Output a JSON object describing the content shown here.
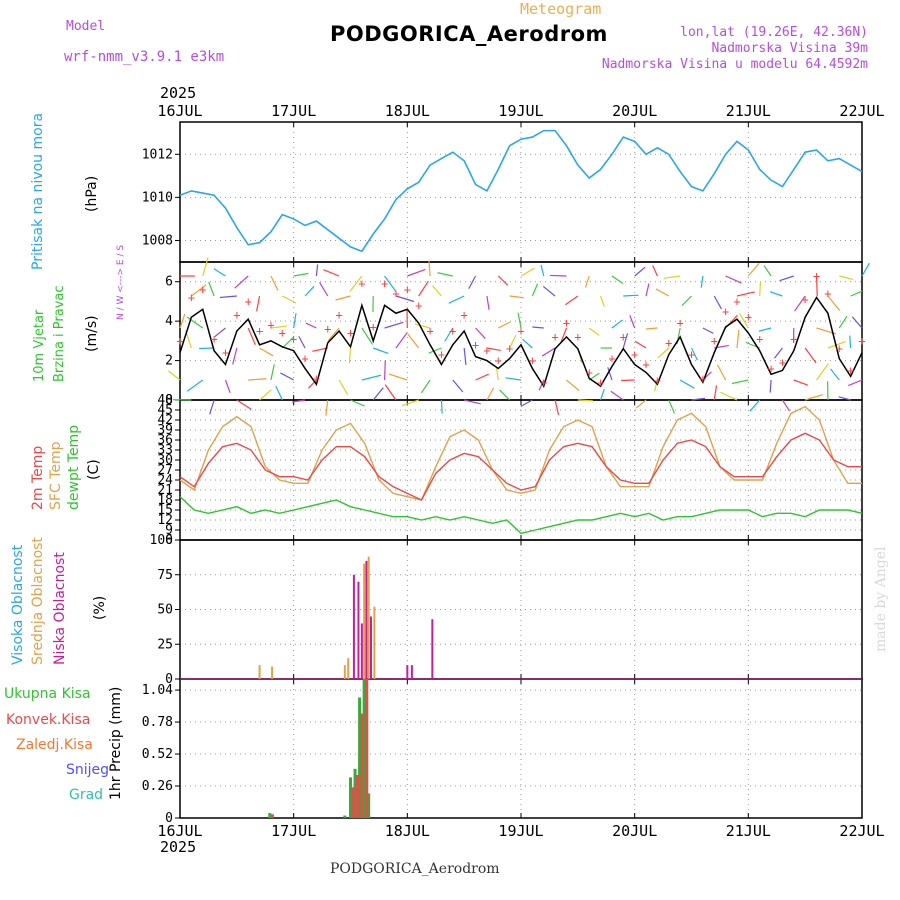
{
  "header": {
    "model_label": "Model",
    "model_name": "wrf-nmm_v3.9.1 e3km",
    "meteogram_label": "Meteogram",
    "station": "PODGORICA_Aerodrom",
    "lonlat": "lon,lat (19.26E, 42.36N)",
    "elevation": "Nadmorska Visina 39m",
    "model_elevation": "Nadmorska Visina u modelu 64.4592m",
    "year_top": "2025",
    "year_bottom": "2025",
    "footer_station": "PODGORICA_Aerodrom",
    "watermark": "made by Angel"
  },
  "colors": {
    "pressure": "#2aa7e6",
    "temp2m": "#e84a4a",
    "sfc": "#e0a24a",
    "dewpt": "#2fc42f",
    "wind_speed": "#000000",
    "gust": "#ff4040",
    "high_cloud": "#2aa7e6",
    "mid_cloud": "#e0a24a",
    "low_cloud": "#c0209a",
    "total_precip": "#3aa83a",
    "conv_precip": "#e84a4a",
    "frz_precip": "#f07830",
    "snow": "#5050ff",
    "graupel": "#30c0b0",
    "watermark": "#d8d8d8"
  },
  "chart_data": [
    {
      "type": "line",
      "title": "Pritisak na nivou mora",
      "ylabel": "(hPa)",
      "ylim": [
        1007,
        1013.5
      ],
      "yticks": [
        1008,
        1010,
        1012
      ],
      "xticks": [
        "16JUL",
        "17JUL",
        "18JUL",
        "19JUL",
        "20JUL",
        "21JUL",
        "22JUL"
      ],
      "x": [
        0,
        0.1,
        0.2,
        0.3,
        0.4,
        0.5,
        0.6,
        0.7,
        0.8,
        0.9,
        1.0,
        1.1,
        1.2,
        1.3,
        1.4,
        1.5,
        1.6,
        1.7,
        1.8,
        1.9,
        2.0,
        2.1,
        2.2,
        2.3,
        2.4,
        2.5,
        2.6,
        2.7,
        2.8,
        2.9,
        3.0,
        3.1,
        3.2,
        3.3,
        3.4,
        3.5,
        3.6,
        3.7,
        3.8,
        3.9,
        4.0,
        4.1,
        4.2,
        4.3,
        4.4,
        4.5,
        4.6,
        4.7,
        4.8,
        4.9,
        5.0,
        5.1,
        5.2,
        5.3,
        5.4,
        5.5,
        5.6,
        5.7,
        5.8,
        5.9,
        6.0
      ],
      "series": [
        {
          "name": "Pritisak",
          "values": [
            1010.1,
            1010.3,
            1010.2,
            1010.1,
            1009.5,
            1008.6,
            1007.8,
            1007.9,
            1008.4,
            1009.2,
            1009.0,
            1008.7,
            1008.9,
            1008.5,
            1008.1,
            1007.7,
            1007.5,
            1008.3,
            1009.0,
            1009.9,
            1010.4,
            1010.7,
            1011.5,
            1011.8,
            1012.1,
            1011.7,
            1010.6,
            1010.3,
            1011.3,
            1012.4,
            1012.7,
            1012.8,
            1013.1,
            1013.1,
            1012.4,
            1011.5,
            1010.9,
            1011.3,
            1012.0,
            1012.8,
            1012.6,
            1012.0,
            1012.3,
            1012.0,
            1011.2,
            1010.5,
            1010.3,
            1011.1,
            1012.0,
            1012.6,
            1012.2,
            1011.3,
            1010.8,
            1010.5,
            1011.3,
            1012.1,
            1012.2,
            1011.7,
            1011.8,
            1011.5,
            1011.2
          ]
        }
      ]
    },
    {
      "type": "line",
      "title": "10m Vjetar Brzina i Pravac",
      "ylabel": "(m/s)",
      "compass": "N / W <---> E / S",
      "ylim": [
        0,
        7
      ],
      "yticks": [
        0,
        2,
        4,
        6
      ],
      "x": [
        0,
        0.1,
        0.2,
        0.3,
        0.4,
        0.5,
        0.6,
        0.7,
        0.8,
        0.9,
        1.0,
        1.1,
        1.2,
        1.3,
        1.4,
        1.5,
        1.6,
        1.7,
        1.8,
        1.9,
        2.0,
        2.1,
        2.2,
        2.3,
        2.4,
        2.5,
        2.6,
        2.7,
        2.8,
        2.9,
        3.0,
        3.1,
        3.2,
        3.3,
        3.4,
        3.5,
        3.6,
        3.7,
        3.8,
        3.9,
        4.0,
        4.1,
        4.2,
        4.3,
        4.4,
        4.5,
        4.6,
        4.7,
        4.8,
        4.9,
        5.0,
        5.1,
        5.2,
        5.3,
        5.4,
        5.5,
        5.6,
        5.7,
        5.8,
        5.9,
        6.0
      ],
      "series": [
        {
          "name": "Brzina",
          "values": [
            2.4,
            4.2,
            4.6,
            2.5,
            1.8,
            3.5,
            4.1,
            2.8,
            3.0,
            2.7,
            2.5,
            1.6,
            0.8,
            2.9,
            3.5,
            2.7,
            4.8,
            3.0,
            4.8,
            4.4,
            4.6,
            3.9,
            2.8,
            1.8,
            2.8,
            3.5,
            2.2,
            2.0,
            1.6,
            2.1,
            2.8,
            1.6,
            0.7,
            2.6,
            3.2,
            2.6,
            1.1,
            0.7,
            1.7,
            2.6,
            1.8,
            1.4,
            0.8,
            2.3,
            3.2,
            1.8,
            0.9,
            2.4,
            3.7,
            4.1,
            3.4,
            2.5,
            1.3,
            1.5,
            2.5,
            4.2,
            5.2,
            4.4,
            2.1,
            1.2,
            2.4
          ]
        },
        {
          "name": "Udari",
          "values": [
            3.0,
            5.2,
            5.6,
            3.1,
            2.4,
            4.3,
            5.0,
            3.5,
            3.8,
            3.4,
            3.1,
            2.1,
            1.1,
            3.6,
            4.3,
            3.4,
            5.9,
            3.7,
            5.9,
            5.4,
            5.6,
            4.8,
            3.5,
            2.3,
            3.5,
            4.3,
            2.8,
            2.5,
            2.0,
            2.6,
            3.5,
            2.0,
            0.9,
            3.2,
            3.9,
            3.2,
            1.4,
            0.9,
            2.1,
            3.2,
            2.3,
            1.8,
            1.0,
            2.9,
            3.9,
            2.3,
            1.1,
            3.0,
            4.5,
            5.0,
            4.2,
            3.1,
            1.6,
            1.9,
            3.1,
            5.1,
            6.3,
            5.4,
            2.6,
            1.5,
            3.0
          ]
        }
      ]
    },
    {
      "type": "line",
      "title": "2m Temp / SFC Temp / dewpt Temp",
      "ylabel": "(C)",
      "ylim": [
        6,
        48
      ],
      "yticks": [
        6,
        9,
        12,
        15,
        18,
        21,
        24,
        27,
        30,
        33,
        36,
        39,
        42,
        45,
        48
      ],
      "x": [
        0,
        0.125,
        0.25,
        0.375,
        0.5,
        0.625,
        0.75,
        0.875,
        1.0,
        1.125,
        1.25,
        1.375,
        1.5,
        1.625,
        1.75,
        1.875,
        2.0,
        2.125,
        2.25,
        2.375,
        2.5,
        2.625,
        2.75,
        2.875,
        3.0,
        3.125,
        3.25,
        3.375,
        3.5,
        3.625,
        3.75,
        3.875,
        4.0,
        4.125,
        4.25,
        4.375,
        4.5,
        4.625,
        4.75,
        4.875,
        5.0,
        5.125,
        5.25,
        5.375,
        5.5,
        5.625,
        5.75,
        5.875,
        6.0
      ],
      "series": [
        {
          "name": "2m Temp",
          "values": [
            25,
            22,
            29,
            34,
            35,
            33,
            27,
            25,
            25,
            24,
            30,
            34,
            34,
            31,
            25,
            22,
            20,
            18,
            26,
            30,
            32,
            31,
            27,
            23,
            21,
            22,
            30,
            34,
            35,
            34,
            28,
            24,
            23,
            23,
            30,
            35,
            36,
            34,
            28,
            25,
            25,
            25,
            31,
            36,
            38,
            36,
            30,
            28,
            28
          ]
        },
        {
          "name": "SFC Temp",
          "values": [
            24,
            21,
            33,
            40,
            43,
            40,
            28,
            24,
            23,
            23,
            33,
            39,
            41,
            35,
            24,
            20,
            19,
            18,
            28,
            37,
            39,
            36,
            27,
            21,
            20,
            21,
            33,
            40,
            42,
            40,
            28,
            22,
            22,
            22,
            34,
            42,
            44,
            40,
            28,
            24,
            24,
            24,
            35,
            44,
            46,
            42,
            30,
            23,
            23
          ]
        },
        {
          "name": "dewpt Temp",
          "values": [
            19,
            15,
            14,
            15,
            16,
            14,
            15,
            14,
            15,
            16,
            17,
            18,
            16,
            15,
            14,
            13,
            13,
            12,
            13,
            12,
            13,
            12,
            11,
            12,
            8,
            9,
            10,
            11,
            12,
            12,
            13,
            14,
            13,
            14,
            12,
            13,
            13,
            14,
            15,
            15,
            15,
            13,
            14,
            14,
            13,
            15,
            15,
            15,
            14
          ]
        }
      ]
    },
    {
      "type": "bar",
      "title": "Visoka / Srednja / Niska Oblacnost",
      "ylabel": "(%)",
      "ylim": [
        0,
        100
      ],
      "yticks": [
        0,
        25,
        50,
        75,
        100
      ],
      "series": [
        {
          "name": "Visoka Oblacnost",
          "x": [],
          "values": []
        },
        {
          "name": "Srednja Oblacnost",
          "x": [
            0.7,
            0.76,
            0.81,
            1.45,
            1.48,
            1.62,
            1.66,
            1.71
          ],
          "values": [
            10,
            8,
            9,
            10,
            15,
            83,
            88,
            52
          ]
        },
        {
          "name": "Niska Oblacnost",
          "x": [
            1.5,
            1.53,
            1.57,
            1.6,
            1.64,
            1.68,
            2.0,
            2.04,
            2.22
          ],
          "values": [
            5,
            75,
            70,
            40,
            85,
            45,
            10,
            10,
            43
          ]
        }
      ]
    },
    {
      "type": "bar",
      "title": "1hr Precip",
      "ylabel": "1hr Precip (mm)",
      "ylim": [
        0,
        1.13
      ],
      "yticks": [
        0,
        0.26,
        0.52,
        0.78,
        1.04
      ],
      "xticks": [
        "16JUL",
        "17JUL",
        "18JUL",
        "19JUL",
        "20JUL",
        "21JUL",
        "22JUL"
      ],
      "legend": [
        "Ukupna Kisa",
        "Konvek.Kisa",
        "Zaledj.Kisa",
        "Snijeg",
        "Grad"
      ],
      "series": [
        {
          "name": "Ukupna Kisa",
          "x": [
            0.79,
            1.45,
            1.5,
            1.54,
            1.58,
            1.62,
            1.66
          ],
          "values": [
            0.04,
            0.02,
            0.33,
            0.4,
            0.98,
            1.13,
            0.2
          ]
        },
        {
          "name": "Konvek.Kisa",
          "x": [
            0.8,
            1.51,
            1.55,
            1.59,
            1.63
          ],
          "values": [
            0.03,
            0.25,
            0.35,
            0.85,
            1.13
          ]
        }
      ]
    }
  ]
}
